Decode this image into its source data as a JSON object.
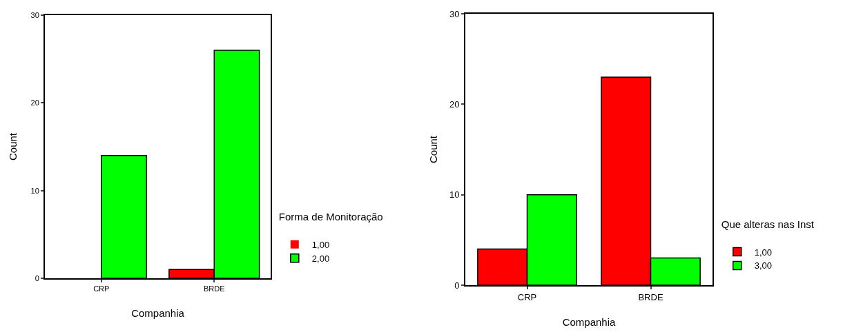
{
  "chart_data": [
    {
      "type": "bar",
      "xlabel": "Companhia",
      "ylabel": "Count",
      "legend_title": "Forma de Monitoração",
      "categories": [
        "CRP",
        "BRDE"
      ],
      "series": [
        {
          "name": "1,00",
          "color": "#ff0000",
          "values": [
            0,
            1
          ]
        },
        {
          "name": "2,00",
          "color": "#00ff00",
          "values": [
            14,
            26
          ]
        }
      ],
      "ylim": [
        0,
        30
      ],
      "yticks": [
        0,
        10,
        20,
        30
      ],
      "grid": false,
      "legend": "right"
    },
    {
      "type": "bar",
      "xlabel": "Companhia",
      "ylabel": "Count",
      "legend_title": "Que alteras nas Inst",
      "categories": [
        "CRP",
        "BRDE"
      ],
      "series": [
        {
          "name": "1,00",
          "color": "#ff0000",
          "values": [
            4,
            23
          ]
        },
        {
          "name": "3,00",
          "color": "#00ff00",
          "values": [
            10,
            3
          ]
        }
      ],
      "ylim": [
        0,
        30
      ],
      "yticks": [
        0,
        10,
        20,
        30
      ],
      "grid": false,
      "legend": "right"
    }
  ]
}
